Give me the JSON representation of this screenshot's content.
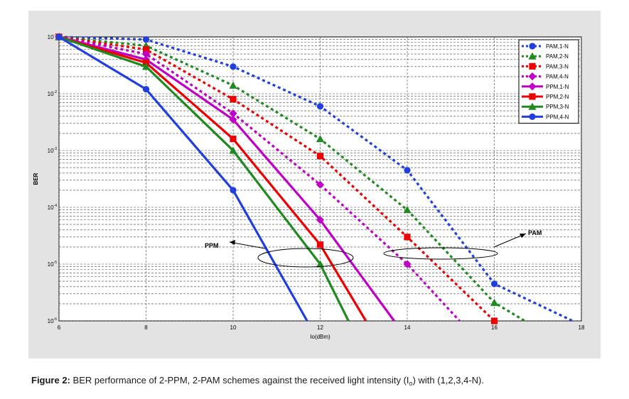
{
  "chart_data": {
    "type": "line",
    "xlabel": "Io(dBm)",
    "ylabel": "BER",
    "xlim": [
      6,
      18
    ],
    "ylim_log10": [
      -6,
      -1
    ],
    "log_y": true,
    "grid": true,
    "legend_placement": "top-right",
    "x_ticks": [
      "6",
      "8",
      "10",
      "12",
      "14",
      "16",
      "18"
    ],
    "y_ticks": [
      {
        "base": "10",
        "exp": "-1",
        "value": 0.1
      },
      {
        "base": "10",
        "exp": "-2",
        "value": 0.01
      },
      {
        "base": "10",
        "exp": "-3",
        "value": 0.001
      },
      {
        "base": "10",
        "exp": "-4",
        "value": 0.0001
      },
      {
        "base": "10",
        "exp": "-5",
        "value": 1e-05
      },
      {
        "base": "10",
        "exp": "-6",
        "value": 1e-06
      }
    ],
    "series": [
      {
        "name": "PAM,1-N",
        "color": "#1f3fe0",
        "dashed": true,
        "marker": "circle",
        "x": [
          6,
          8,
          10,
          12,
          14,
          16,
          17.8
        ],
        "y": [
          0.1,
          0.09,
          0.03,
          0.006,
          0.00045,
          4.5e-06,
          1e-06
        ]
      },
      {
        "name": "PAM,2-N",
        "color": "#1f8a1f",
        "dashed": true,
        "marker": "triangle",
        "x": [
          6,
          8,
          10,
          12,
          14,
          16,
          16.7
        ],
        "y": [
          0.1,
          0.07,
          0.014,
          0.0016,
          9e-05,
          2.1e-06,
          1e-06
        ]
      },
      {
        "name": "PAM,3-N",
        "color": "#ee0000",
        "dashed": true,
        "marker": "square",
        "x": [
          6,
          8,
          10,
          12,
          14,
          16
        ],
        "y": [
          0.1,
          0.06,
          0.008,
          0.0008,
          3e-05,
          1e-06
        ]
      },
      {
        "name": "PAM,4-N",
        "color": "#c000c8",
        "dashed": true,
        "marker": "diamond",
        "x": [
          6,
          8,
          10,
          12,
          14,
          15.2
        ],
        "y": [
          0.1,
          0.05,
          0.0045,
          0.00025,
          1e-05,
          1e-06
        ]
      },
      {
        "name": "PPM,1-N",
        "color": "#c000c8",
        "dashed": false,
        "marker": "diamond",
        "x": [
          6,
          8,
          10,
          12,
          13.7
        ],
        "y": [
          0.1,
          0.04,
          0.0035,
          6e-05,
          1e-06
        ]
      },
      {
        "name": "PPM,2-N",
        "color": "#ee0000",
        "dashed": false,
        "marker": "square",
        "x": [
          6,
          8,
          10,
          12,
          13.05
        ],
        "y": [
          0.1,
          0.035,
          0.0016,
          2.2e-05,
          1e-06
        ]
      },
      {
        "name": "PPM,3-N",
        "color": "#1f8a1f",
        "dashed": false,
        "marker": "triangle",
        "x": [
          6,
          8,
          10,
          12,
          12.65
        ],
        "y": [
          0.1,
          0.03,
          0.001,
          1e-05,
          1e-06
        ]
      },
      {
        "name": "PPM,4-N",
        "color": "#1f3fe0",
        "dashed": false,
        "marker": "circle",
        "x": [
          6,
          8,
          10,
          11.7
        ],
        "y": [
          0.1,
          0.012,
          0.0002,
          1e-06
        ]
      }
    ],
    "annotations": [
      {
        "text": "PPM",
        "near_x": 10,
        "near_y": 2.2e-05
      },
      {
        "text": "PAM",
        "near_x": 16.8,
        "near_y": 2e-05
      }
    ]
  },
  "caption": {
    "label": "Figure 2:",
    "text_before": "BER performance of 2-PPM, 2-PAM schemes against the received light intensity (I",
    "subscript": "o",
    "text_after": ") with (1,2,3,4-N)."
  }
}
